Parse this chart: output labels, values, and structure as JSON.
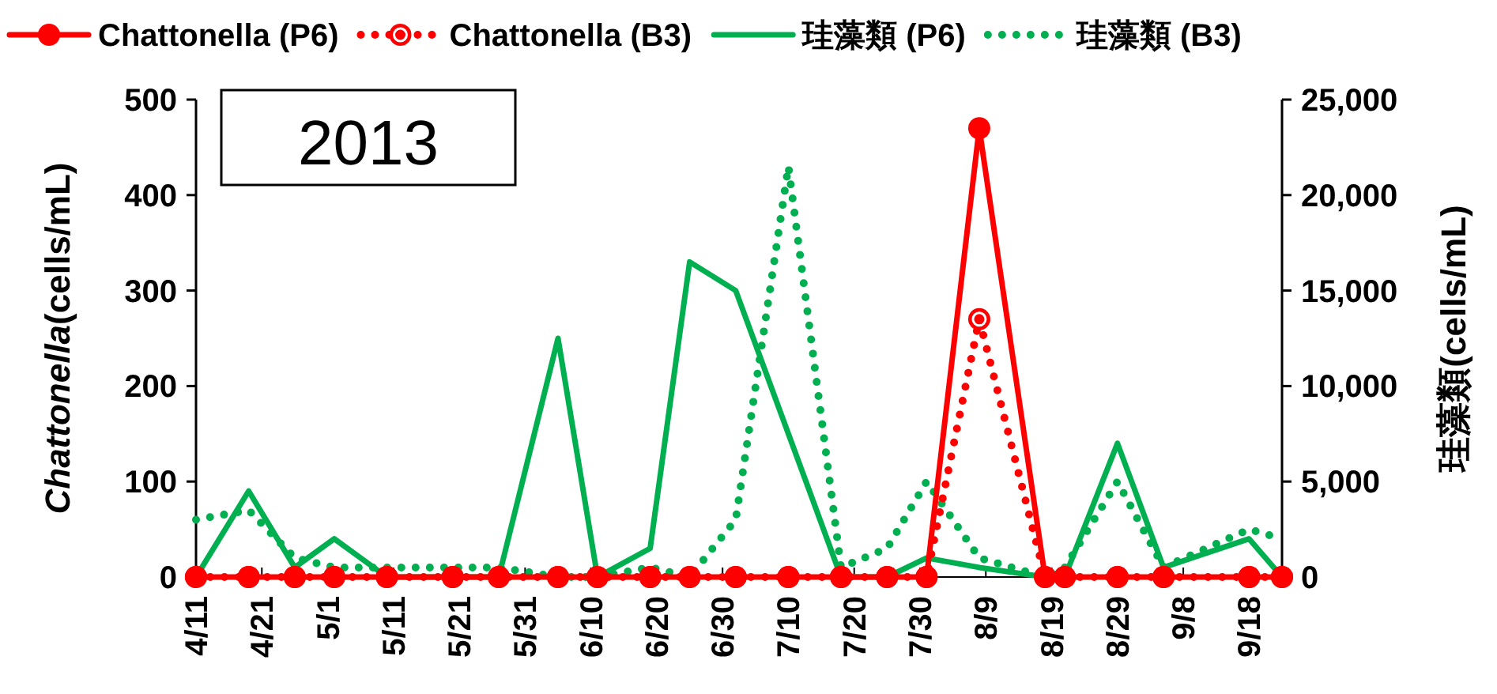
{
  "chart_data": {
    "type": "line",
    "ylabel": "Chattonella(cells/mL)",
    "y2label": "珪藻類(cells/mL)",
    "annotations": [
      "2013"
    ],
    "x": [
      "--04-11",
      "--04-19",
      "--04-26",
      "--05-02",
      "--05-10",
      "--05-20",
      "--05-27",
      "--06-05",
      "--06-11",
      "--06-19",
      "--06-25",
      "--07-02",
      "--07-10",
      "--07-18",
      "--07-25",
      "--07-31",
      "--08-08",
      "--08-18",
      "--08-21",
      "--08-29",
      "--09-05",
      "--09-18",
      "--09-23"
    ],
    "xlim": [
      "--04-11",
      "--09-23"
    ],
    "xticks": [
      {
        "value": "--04-11",
        "label": "4/11"
      },
      {
        "value": "--04-21",
        "label": "4/21"
      },
      {
        "value": "--05-01",
        "label": "5/1"
      },
      {
        "value": "--05-11",
        "label": "5/11"
      },
      {
        "value": "--05-21",
        "label": "5/21"
      },
      {
        "value": "--05-31",
        "label": "5/31"
      },
      {
        "value": "--06-10",
        "label": "6/10"
      },
      {
        "value": "--06-20",
        "label": "6/20"
      },
      {
        "value": "--06-30",
        "label": "6/30"
      },
      {
        "value": "--07-10",
        "label": "7/10"
      },
      {
        "value": "--07-20",
        "label": "7/20"
      },
      {
        "value": "--07-30",
        "label": "7/30"
      },
      {
        "value": "--08-09",
        "label": "8/9"
      },
      {
        "value": "--08-19",
        "label": "8/19"
      },
      {
        "value": "--08-29",
        "label": "8/29"
      },
      {
        "value": "--09-08",
        "label": "9/8"
      },
      {
        "value": "--09-18",
        "label": "9/18"
      }
    ],
    "ylim": [
      0,
      500
    ],
    "yticks": [
      0,
      100,
      200,
      300,
      400,
      500
    ],
    "y2lim": [
      0,
      25000
    ],
    "y2ticks": [
      0,
      {
        "value": 5000,
        "label": "5,000"
      },
      {
        "value": 10000,
        "label": "10,000"
      },
      {
        "value": 15000,
        "label": "15,000"
      },
      {
        "value": 20000,
        "label": "20,000"
      },
      {
        "value": 25000,
        "label": "25,000"
      }
    ],
    "grid": false,
    "legend": "top",
    "series": [
      {
        "name": "Chattonella (P6)",
        "color": "#ff0000",
        "marker": "circle",
        "line_style": "solid",
        "axis": "y",
        "values": [
          0,
          0,
          0,
          0,
          0,
          0,
          0,
          0,
          0,
          0,
          0,
          0,
          0,
          0,
          0,
          0,
          470,
          0,
          0,
          0,
          0,
          0,
          0
        ]
      },
      {
        "name": "Chattonella (B3)",
        "color": "#ff0000",
        "marker": "circle",
        "line_style": "dotted",
        "axis": "y",
        "values": [
          0,
          0,
          0,
          0,
          0,
          0,
          0,
          0,
          0,
          0,
          0,
          0,
          0,
          0,
          0,
          0,
          270,
          0,
          0,
          0,
          0,
          0,
          0
        ]
      },
      {
        "name": "珪藻類 (P6)",
        "color": "#00b050",
        "marker": "none",
        "line_style": "solid",
        "axis": "y2",
        "values": [
          0,
          4500,
          500,
          2000,
          0,
          0,
          0,
          12500,
          0,
          1500,
          16500,
          15000,
          7500,
          0,
          0,
          1000,
          500,
          0,
          0,
          7000,
          500,
          2000,
          0
        ]
      },
      {
        "name": "珪藻類 (B3)",
        "color": "#00b050",
        "marker": "none",
        "line_style": "dotted",
        "axis": "y2",
        "values": [
          3000,
          3500,
          1000,
          500,
          500,
          500,
          500,
          0,
          0,
          500,
          0,
          3000,
          21500,
          500,
          1500,
          5000,
          1000,
          0,
          500,
          5000,
          500,
          2500,
          2000
        ]
      }
    ]
  }
}
